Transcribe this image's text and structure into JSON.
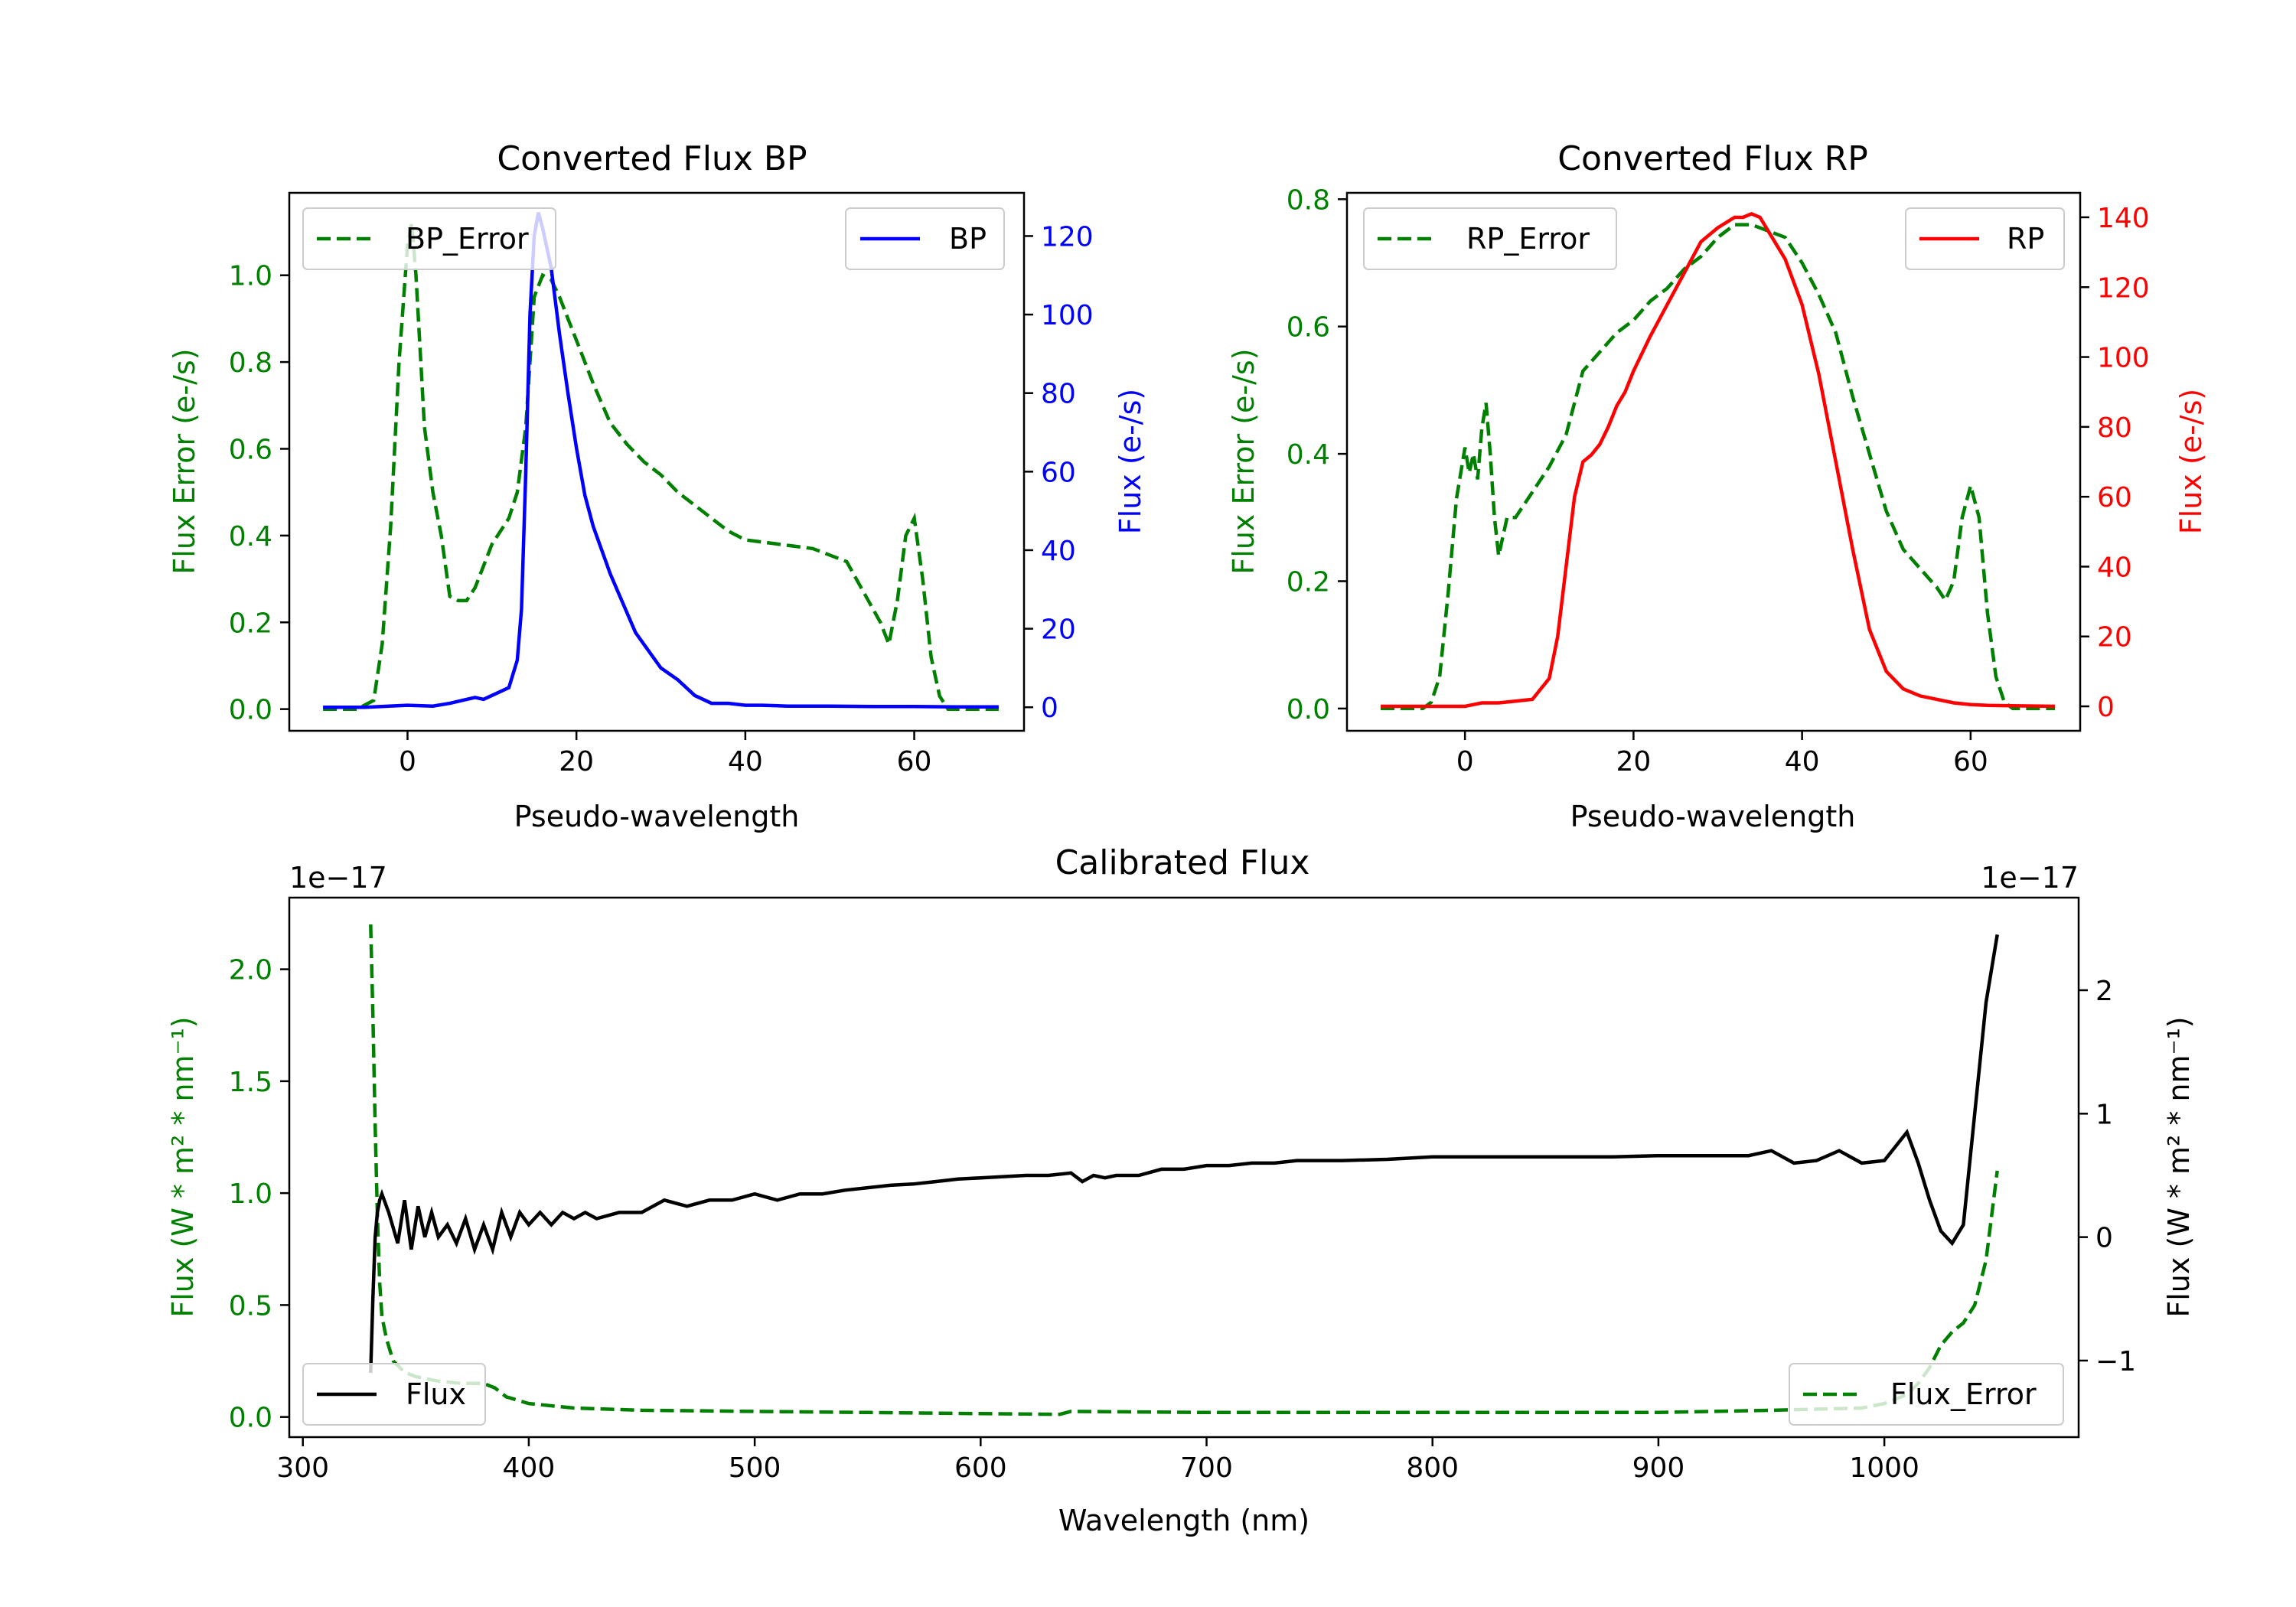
{
  "figure": {
    "background": "#ffffff"
  },
  "colors": {
    "error": "#008000",
    "bp": "#0000ff",
    "rp": "#ff0000",
    "flux": "#000000",
    "axis": "#000000"
  },
  "chart_data": [
    {
      "id": "bp",
      "type": "line",
      "title": "Converted Flux BP",
      "xlabel": "Pseudo-wavelength",
      "ylabel_left": "Flux Error (e-/s)",
      "ylabel_right": "Flux (e-/s)",
      "xlim": [
        -14,
        73
      ],
      "ylim_left": [
        -0.05,
        1.19
      ],
      "ylim_right": [
        -6,
        131
      ],
      "xticks": [
        0,
        20,
        40,
        60
      ],
      "xtick_labels": [
        "0",
        "20",
        "40",
        "60"
      ],
      "yticks_left": [
        0.0,
        0.2,
        0.4,
        0.6,
        0.8,
        1.0
      ],
      "ytick_labels_left": [
        "0.0",
        "0.2",
        "0.4",
        "0.6",
        "0.8",
        "1.0"
      ],
      "yticks_right": [
        0,
        20,
        40,
        60,
        80,
        100,
        120
      ],
      "ytick_labels_right": [
        "0",
        "20",
        "40",
        "60",
        "80",
        "100",
        "120"
      ],
      "legend_left": {
        "label": "BP_Error",
        "placement": "upper-left"
      },
      "legend_right": {
        "label": "BP",
        "placement": "upper-right"
      },
      "series": [
        {
          "name": "BP_Error",
          "axis": "left",
          "style": "dashed",
          "color": "#008000",
          "x": [
            -10,
            -6,
            -4,
            -3,
            -2,
            -1,
            0,
            0.5,
            1,
            2,
            3,
            4,
            5,
            6,
            7,
            8,
            10,
            12,
            13,
            14,
            15,
            16,
            17,
            18,
            19,
            20,
            22,
            24,
            26,
            28,
            30,
            32,
            34,
            36,
            38,
            40,
            44,
            48,
            52,
            54,
            56,
            57,
            58,
            59,
            60,
            61,
            62,
            63,
            64,
            66,
            70
          ],
          "y": [
            0.0,
            0.0,
            0.02,
            0.15,
            0.42,
            0.8,
            1.07,
            1.12,
            1.0,
            0.65,
            0.5,
            0.4,
            0.26,
            0.25,
            0.25,
            0.28,
            0.38,
            0.44,
            0.5,
            0.65,
            0.95,
            1.0,
            0.99,
            0.95,
            0.9,
            0.85,
            0.75,
            0.66,
            0.61,
            0.57,
            0.54,
            0.5,
            0.47,
            0.44,
            0.41,
            0.39,
            0.38,
            0.37,
            0.34,
            0.27,
            0.2,
            0.15,
            0.25,
            0.4,
            0.44,
            0.3,
            0.12,
            0.03,
            0.0,
            0.0,
            0.0
          ]
        },
        {
          "name": "BP",
          "axis": "right",
          "style": "solid",
          "color": "#0000ff",
          "x": [
            -10,
            -5,
            0,
            3,
            5,
            7,
            8,
            9,
            10,
            11,
            12,
            13,
            13.5,
            14,
            14.5,
            15,
            15.5,
            16,
            17,
            18,
            19,
            20,
            21,
            22,
            23,
            24,
            25,
            26,
            27,
            28,
            30,
            32,
            34,
            36,
            38,
            40,
            42,
            45,
            50,
            55,
            60,
            65,
            70
          ],
          "y": [
            0,
            0,
            0.5,
            0.3,
            1,
            2,
            2.5,
            2,
            3,
            4,
            5,
            12,
            25,
            60,
            100,
            120,
            126,
            122,
            112,
            95,
            80,
            66,
            54,
            46,
            40,
            34,
            29,
            24,
            19,
            16,
            10,
            7,
            3,
            1,
            1,
            0.5,
            0.5,
            0.3,
            0.3,
            0.2,
            0.2,
            0.1,
            0.1
          ]
        }
      ]
    },
    {
      "id": "rp",
      "type": "line",
      "title": "Converted Flux RP",
      "xlabel": "Pseudo-wavelength",
      "ylabel_left": "Flux Error (e-/s)",
      "ylabel_right": "Flux (e-/s)",
      "xlim": [
        -14,
        73
      ],
      "ylim_left": [
        -0.035,
        0.81
      ],
      "ylim_right": [
        -7,
        147
      ],
      "xticks": [
        0,
        20,
        40,
        60
      ],
      "xtick_labels": [
        "0",
        "20",
        "40",
        "60"
      ],
      "yticks_left": [
        0.0,
        0.2,
        0.4,
        0.6,
        0.8
      ],
      "ytick_labels_left": [
        "0.0",
        "0.2",
        "0.4",
        "0.6",
        "0.8"
      ],
      "yticks_right": [
        0,
        20,
        40,
        60,
        80,
        100,
        120,
        140
      ],
      "ytick_labels_right": [
        "0",
        "20",
        "40",
        "60",
        "80",
        "100",
        "120",
        "140"
      ],
      "legend_left": {
        "label": "RP_Error",
        "placement": "upper-left"
      },
      "legend_right": {
        "label": "RP",
        "placement": "upper-right"
      },
      "series": [
        {
          "name": "RP_Error",
          "axis": "left",
          "style": "dashed",
          "color": "#008000",
          "x": [
            -10,
            -5,
            -4,
            -3,
            -2,
            -1,
            0,
            0.5,
            1,
            1.5,
            2,
            2.5,
            3,
            3.5,
            4,
            5,
            6,
            8,
            10,
            12,
            14,
            16,
            18,
            20,
            22,
            24,
            26,
            28,
            30,
            32,
            34,
            36,
            38,
            40,
            42,
            44,
            46,
            48,
            50,
            52,
            54,
            56,
            57,
            58,
            59,
            60,
            61,
            62,
            63,
            64,
            65,
            70
          ],
          "y": [
            0,
            0,
            0.01,
            0.05,
            0.18,
            0.33,
            0.41,
            0.37,
            0.4,
            0.36,
            0.44,
            0.48,
            0.4,
            0.3,
            0.24,
            0.3,
            0.3,
            0.34,
            0.38,
            0.43,
            0.53,
            0.56,
            0.59,
            0.61,
            0.64,
            0.66,
            0.69,
            0.71,
            0.74,
            0.76,
            0.76,
            0.75,
            0.74,
            0.7,
            0.65,
            0.59,
            0.49,
            0.4,
            0.31,
            0.25,
            0.22,
            0.19,
            0.17,
            0.2,
            0.3,
            0.35,
            0.3,
            0.15,
            0.05,
            0.01,
            0,
            0
          ]
        },
        {
          "name": "RP",
          "axis": "right",
          "style": "solid",
          "color": "#ff0000",
          "x": [
            -10,
            0,
            2,
            4,
            6,
            8,
            10,
            11,
            12,
            13,
            14,
            15,
            16,
            17,
            18,
            19,
            20,
            22,
            24,
            26,
            28,
            30,
            32,
            33,
            34,
            35,
            36,
            38,
            40,
            42,
            44,
            46,
            48,
            50,
            52,
            54,
            56,
            58,
            60,
            62,
            64,
            70
          ],
          "y": [
            0,
            0,
            1,
            1,
            1.5,
            2,
            8,
            20,
            40,
            60,
            70,
            72,
            75,
            80,
            86,
            90,
            96,
            106,
            115,
            124,
            133,
            137,
            140,
            140,
            141,
            140,
            136,
            128,
            115,
            95,
            70,
            45,
            22,
            10,
            5,
            3,
            2,
            1,
            0.5,
            0.3,
            0.2,
            0
          ]
        }
      ]
    },
    {
      "id": "calibrated",
      "type": "line",
      "title": "Calibrated Flux",
      "xlabel": "Wavelength (nm)",
      "ylabel_left": "Flux (W * m² * nm⁻¹)",
      "ylabel_right": "Flux (W * m² * nm⁻¹)",
      "offset_left": "1e−17",
      "offset_right": "1e−17",
      "xlim": [
        294,
        1086
      ],
      "ylim_left": [
        -0.09,
        2.32
      ],
      "ylim_right": [
        -1.62,
        2.75
      ],
      "xticks": [
        300,
        400,
        500,
        600,
        700,
        800,
        900,
        1000
      ],
      "xtick_labels": [
        "300",
        "400",
        "500",
        "600",
        "700",
        "800",
        "900",
        "1000"
      ],
      "yticks_left": [
        0.0,
        0.5,
        1.0,
        1.5,
        2.0
      ],
      "ytick_labels_left": [
        "0.0",
        "0.5",
        "1.0",
        "1.5",
        "2.0"
      ],
      "yticks_right": [
        -1,
        0,
        1,
        2
      ],
      "ytick_labels_right": [
        "−1",
        "0",
        "1",
        "2"
      ],
      "legend_left": {
        "label": "Flux",
        "placement": "lower-left"
      },
      "legend_right": {
        "label": "Flux_Error",
        "placement": "lower-right"
      },
      "series": [
        {
          "name": "Flux_Error",
          "axis": "left",
          "style": "dashed",
          "color": "#008000",
          "x": [
            330,
            331,
            332,
            333,
            334,
            335,
            337,
            340,
            345,
            350,
            360,
            370,
            380,
            385,
            390,
            400,
            420,
            450,
            500,
            550,
            600,
            635,
            640,
            700,
            800,
            900,
            950,
            990,
            1000,
            1010,
            1015,
            1020,
            1025,
            1030,
            1035,
            1040,
            1045,
            1050
          ],
          "y": [
            2.2,
            1.8,
            1.3,
            0.9,
            0.6,
            0.45,
            0.35,
            0.25,
            0.2,
            0.18,
            0.16,
            0.15,
            0.15,
            0.13,
            0.09,
            0.06,
            0.04,
            0.03,
            0.025,
            0.02,
            0.015,
            0.012,
            0.025,
            0.02,
            0.02,
            0.02,
            0.03,
            0.04,
            0.06,
            0.1,
            0.15,
            0.22,
            0.32,
            0.38,
            0.42,
            0.5,
            0.7,
            1.1
          ]
        },
        {
          "name": "Flux",
          "axis": "right",
          "style": "solid",
          "color": "#000000",
          "x": [
            330,
            331,
            332,
            333,
            334,
            335,
            338,
            342,
            345,
            348,
            351,
            354,
            357,
            360,
            364,
            368,
            372,
            376,
            380,
            384,
            388,
            392,
            396,
            400,
            405,
            410,
            415,
            420,
            425,
            430,
            440,
            450,
            460,
            470,
            480,
            490,
            500,
            510,
            520,
            530,
            540,
            550,
            560,
            570,
            580,
            590,
            600,
            610,
            620,
            630,
            640,
            645,
            650,
            655,
            660,
            670,
            680,
            690,
            700,
            710,
            720,
            730,
            740,
            750,
            760,
            780,
            800,
            820,
            840,
            860,
            880,
            900,
            920,
            940,
            950,
            960,
            970,
            980,
            990,
            1000,
            1010,
            1015,
            1020,
            1025,
            1030,
            1035,
            1040,
            1045,
            1050
          ],
          "y": [
            -1.1,
            -0.5,
            0.0,
            0.2,
            0.3,
            0.35,
            0.2,
            -0.05,
            0.3,
            -0.1,
            0.25,
            0.0,
            0.2,
            0.0,
            0.1,
            -0.05,
            0.15,
            -0.1,
            0.1,
            -0.1,
            0.2,
            0.0,
            0.2,
            0.1,
            0.2,
            0.1,
            0.2,
            0.15,
            0.2,
            0.15,
            0.2,
            0.2,
            0.3,
            0.25,
            0.3,
            0.3,
            0.35,
            0.3,
            0.35,
            0.35,
            0.38,
            0.4,
            0.42,
            0.43,
            0.45,
            0.47,
            0.48,
            0.49,
            0.5,
            0.5,
            0.52,
            0.45,
            0.5,
            0.48,
            0.5,
            0.5,
            0.55,
            0.55,
            0.58,
            0.58,
            0.6,
            0.6,
            0.62,
            0.62,
            0.62,
            0.63,
            0.65,
            0.65,
            0.65,
            0.65,
            0.65,
            0.66,
            0.66,
            0.66,
            0.7,
            0.6,
            0.62,
            0.7,
            0.6,
            0.62,
            0.85,
            0.6,
            0.3,
            0.05,
            -0.05,
            0.1,
            1.0,
            1.9,
            2.45
          ]
        }
      ]
    }
  ]
}
